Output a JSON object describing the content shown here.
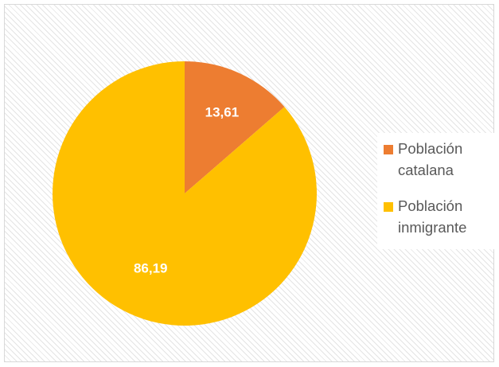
{
  "chart_data": {
    "type": "pie",
    "title": "",
    "categories": [
      "Población catalana",
      "Población inmigrante"
    ],
    "values": [
      13.61,
      86.19
    ],
    "value_labels": [
      "13,61",
      "86,19"
    ],
    "colors": [
      "#ED7D31",
      "#FFC000"
    ],
    "start_angle_deg": 0,
    "direction": "clockwise",
    "legend_position": "right",
    "legend": [
      {
        "label": "Población\ncatalana",
        "color": "#ED7D31"
      },
      {
        "label": "Población\ninmigrante",
        "color": "#FFC000"
      }
    ]
  }
}
